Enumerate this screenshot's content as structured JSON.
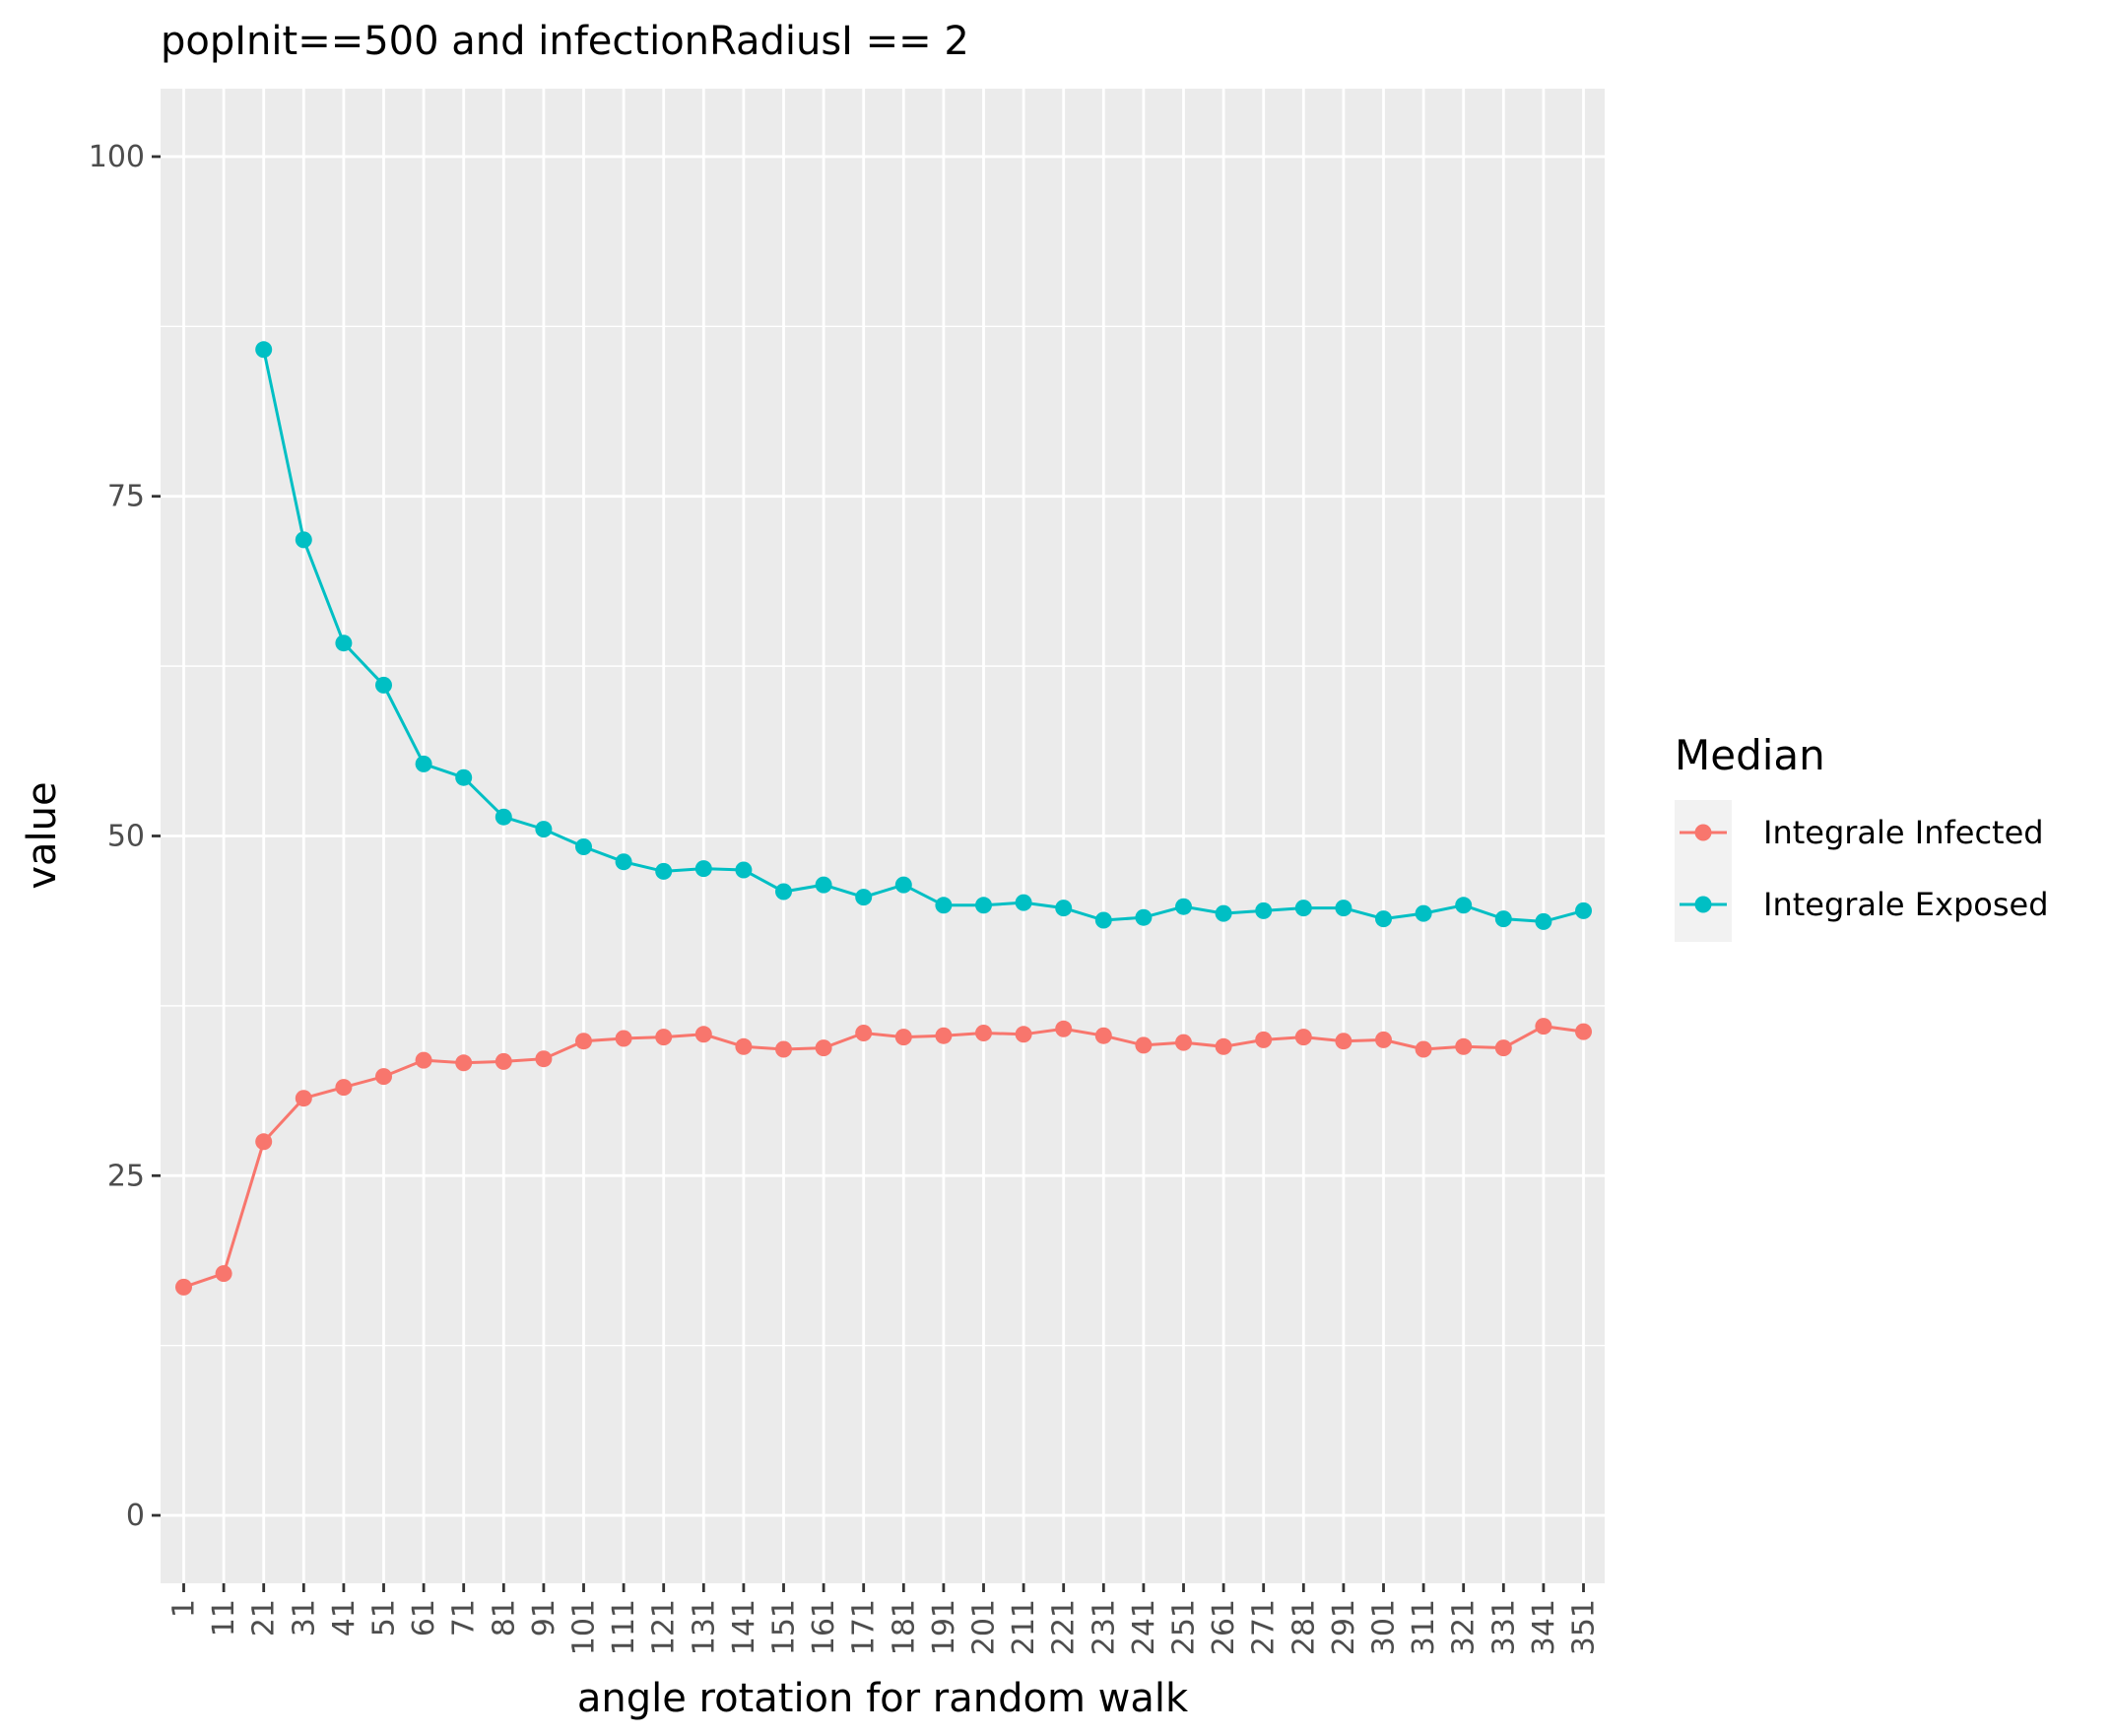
{
  "chart_data": {
    "type": "line",
    "title": "popInit==500 and infectionRadiusI == 2",
    "xlabel": "angle rotation for random walk",
    "ylabel": "value",
    "categories": [
      "1",
      "11",
      "21",
      "31",
      "41",
      "51",
      "61",
      "71",
      "81",
      "91",
      "101",
      "111",
      "121",
      "131",
      "141",
      "151",
      "161",
      "171",
      "181",
      "191",
      "201",
      "211",
      "221",
      "231",
      "241",
      "251",
      "261",
      "271",
      "281",
      "291",
      "301",
      "311",
      "321",
      "331",
      "341",
      "351"
    ],
    "ylim": [
      -5,
      105
    ],
    "yticks": [
      0,
      25,
      50,
      75,
      100
    ],
    "grid": true,
    "legend": {
      "title": "Median",
      "position": "right"
    },
    "series": [
      {
        "name": "Integrale Infected",
        "color": "#F8766D",
        "values": [
          16.8,
          17.8,
          27.5,
          30.7,
          31.5,
          32.3,
          33.5,
          33.3,
          33.4,
          33.6,
          34.9,
          35.1,
          35.2,
          35.4,
          34.5,
          34.3,
          34.4,
          35.5,
          35.2,
          35.3,
          35.5,
          35.4,
          35.8,
          35.3,
          34.6,
          34.8,
          34.5,
          35.0,
          35.2,
          34.9,
          35.0,
          34.3,
          34.5,
          34.4,
          36.0,
          35.6
        ]
      },
      {
        "name": "Integrale Exposed",
        "color": "#00BFC4",
        "values": [
          null,
          null,
          85.8,
          71.8,
          64.2,
          61.1,
          55.3,
          54.3,
          51.4,
          50.5,
          49.2,
          48.1,
          47.4,
          47.6,
          47.5,
          45.9,
          46.4,
          45.5,
          46.4,
          44.9,
          44.9,
          45.1,
          44.7,
          43.8,
          44.0,
          44.8,
          44.3,
          44.5,
          44.7,
          44.7,
          43.9,
          44.3,
          44.9,
          43.9,
          43.7,
          44.5
        ]
      }
    ]
  }
}
